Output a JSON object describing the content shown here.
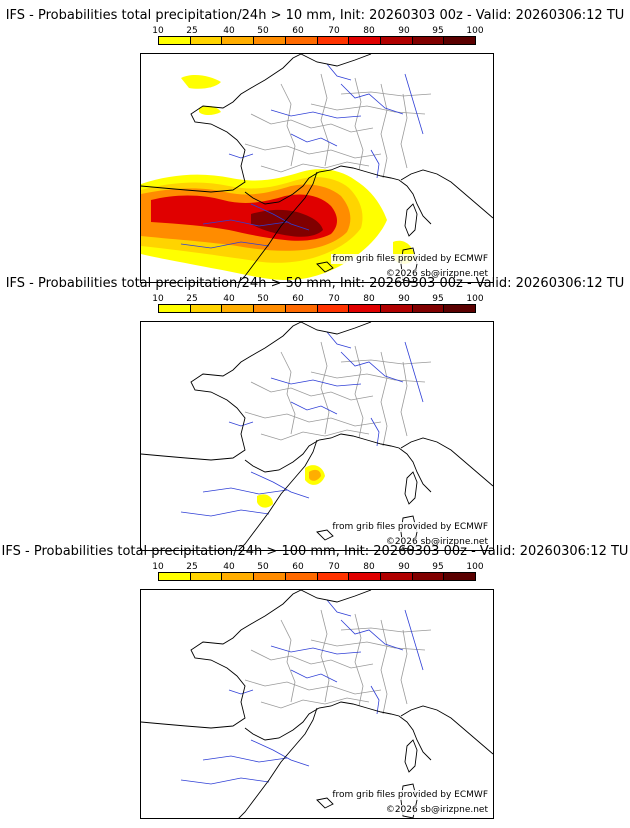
{
  "legend": {
    "ticks": [
      "10",
      "25",
      "40",
      "50",
      "60",
      "70",
      "80",
      "90",
      "95",
      "100"
    ],
    "colors": [
      "#ffff00",
      "#ffd400",
      "#ffae00",
      "#ff8c00",
      "#ff6a00",
      "#ff3300",
      "#e00000",
      "#b00000",
      "#800000",
      "#5a0000"
    ]
  },
  "source_credit": "from grib files provided by ECMWF",
  "copyright": "©2026 sb@irizpne.net",
  "panels": [
    {
      "title": "IFS - Probabilities total precipitation/24h > 10 mm, Init: 20260303 00z - Valid: 20260306:12 TU",
      "intensity": "high"
    },
    {
      "title": "IFS - Probabilities total precipitation/24h > 50 mm, Init: 20260303 00z - Valid: 20260306:12 TU",
      "intensity": "low"
    },
    {
      "title": "IFS - Probabilities total precipitation/24h > 100 mm, Init: 20260303 00z - Valid: 20260306:12 TU",
      "intensity": "none"
    }
  ]
}
